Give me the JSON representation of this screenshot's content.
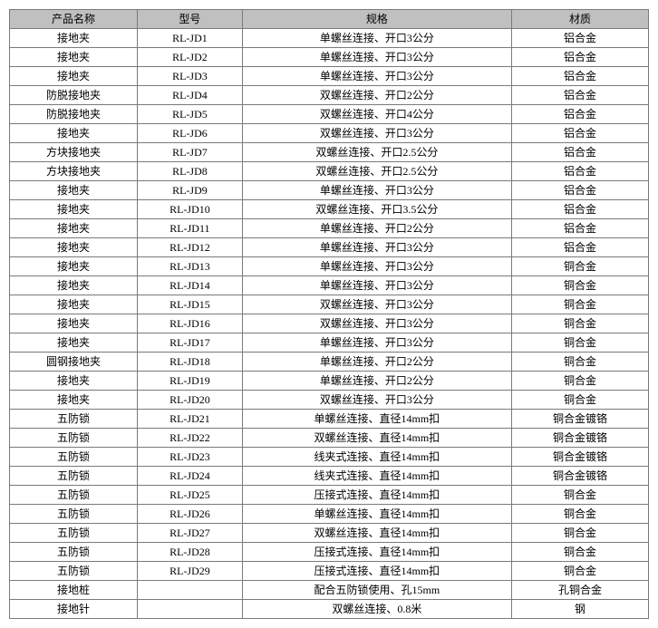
{
  "table": {
    "headers": [
      "产品名称",
      "型号",
      "规格",
      "材质"
    ],
    "rows": [
      [
        "接地夹",
        "RL-JD1",
        "单螺丝连接、开口3公分",
        "铝合金"
      ],
      [
        "接地夹",
        "RL-JD2",
        "单螺丝连接、开口3公分",
        "铝合金"
      ],
      [
        "接地夹",
        "RL-JD3",
        "单螺丝连接、开口3公分",
        "铝合金"
      ],
      [
        "防脱接地夹",
        "RL-JD4",
        "双螺丝连接、开口2公分",
        "铝合金"
      ],
      [
        "防脱接地夹",
        "RL-JD5",
        "双螺丝连接、开口4公分",
        "铝合金"
      ],
      [
        "接地夹",
        "RL-JD6",
        "双螺丝连接、开口3公分",
        "铝合金"
      ],
      [
        "方块接地夹",
        "RL-JD7",
        "双螺丝连接、开口2.5公分",
        "铝合金"
      ],
      [
        "方块接地夹",
        "RL-JD8",
        "双螺丝连接、开口2.5公分",
        "铝合金"
      ],
      [
        "接地夹",
        "RL-JD9",
        "单螺丝连接、开口3公分",
        "铝合金"
      ],
      [
        "接地夹",
        "RL-JD10",
        "双螺丝连接、开口3.5公分",
        "铝合金"
      ],
      [
        "接地夹",
        "RL-JD11",
        "单螺丝连接、开口2公分",
        "铝合金"
      ],
      [
        "接地夹",
        "RL-JD12",
        "单螺丝连接、开口3公分",
        "铝合金"
      ],
      [
        "接地夹",
        "RL-JD13",
        "单螺丝连接、开口3公分",
        "铜合金"
      ],
      [
        "接地夹",
        "RL-JD14",
        "单螺丝连接、开口3公分",
        "铜合金"
      ],
      [
        "接地夹",
        "RL-JD15",
        "双螺丝连接、开口3公分",
        "铜合金"
      ],
      [
        "接地夹",
        "RL-JD16",
        "双螺丝连接、开口3公分",
        "铜合金"
      ],
      [
        "接地夹",
        "RL-JD17",
        "单螺丝连接、开口3公分",
        "铜合金"
      ],
      [
        "圆钢接地夹",
        "RL-JD18",
        "单螺丝连接、开口2公分",
        "铜合金"
      ],
      [
        "接地夹",
        "RL-JD19",
        "单螺丝连接、开口2公分",
        "铜合金"
      ],
      [
        "接地夹",
        "RL-JD20",
        "双螺丝连接、开口3公分",
        "铜合金"
      ],
      [
        "五防锁",
        "RL-JD21",
        "单螺丝连接、直径14mm扣",
        "铜合金镀铬"
      ],
      [
        "五防锁",
        "RL-JD22",
        "双螺丝连接、直径14mm扣",
        "铜合金镀铬"
      ],
      [
        "五防锁",
        "RL-JD23",
        "线夹式连接、直径14mm扣",
        "铜合金镀铬"
      ],
      [
        "五防锁",
        "RL-JD24",
        "线夹式连接、直径14mm扣",
        "铜合金镀铬"
      ],
      [
        "五防锁",
        "RL-JD25",
        "压接式连接、直径14mm扣",
        "铜合金"
      ],
      [
        "五防锁",
        "RL-JD26",
        "单螺丝连接、直径14mm扣",
        "铜合金"
      ],
      [
        "五防锁",
        "RL-JD27",
        "双螺丝连接、直径14mm扣",
        "铜合金"
      ],
      [
        "五防锁",
        "RL-JD28",
        "压接式连接、直径14mm扣",
        "铜合金"
      ],
      [
        "五防锁",
        "RL-JD29",
        "压接式连接、直径14mm扣",
        "铜合金"
      ],
      [
        "接地桩",
        "",
        "配合五防锁使用、孔15mm",
        "孔铜合金"
      ],
      [
        "接地针",
        "",
        "双螺丝连接、0.8米",
        "钢"
      ]
    ]
  }
}
